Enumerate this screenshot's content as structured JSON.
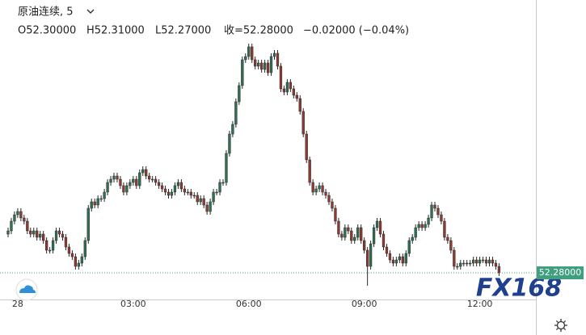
{
  "chart_data": {
    "type": "candlestick",
    "title": "原油连续, 5",
    "ohlc_texts": [
      "O52.30000",
      "H52.31000",
      "L52.27000",
      "收=52.28000",
      "−0.02000 (−0.04%)"
    ],
    "last_price_label": "52.28000",
    "logo": "FX168",
    "up_color": "#2f6f52",
    "down_color": "#8e3a30",
    "last_color": "#3f9f7f",
    "ylim": [
      52.195,
      53.125
    ],
    "categories": [
      null,
      null,
      null,
      "28",
      null,
      null,
      null,
      null,
      null,
      null,
      null,
      null,
      null,
      null,
      null,
      null,
      null,
      null,
      null,
      null,
      null,
      null,
      null,
      null,
      null,
      null,
      null,
      null,
      null,
      null,
      null,
      null,
      null,
      null,
      null,
      null,
      null,
      null,
      null,
      "03:00",
      null,
      null,
      null,
      null,
      null,
      null,
      null,
      null,
      null,
      null,
      null,
      null,
      null,
      null,
      null,
      null,
      null,
      null,
      null,
      null,
      null,
      null,
      null,
      null,
      null,
      null,
      null,
      null,
      null,
      null,
      null,
      null,
      null,
      null,
      null,
      "06:00",
      null,
      null,
      null,
      null,
      null,
      null,
      null,
      null,
      null,
      null,
      null,
      null,
      null,
      null,
      null,
      null,
      null,
      null,
      null,
      null,
      null,
      null,
      null,
      null,
      null,
      null,
      null,
      null,
      null,
      null,
      null,
      null,
      null,
      null,
      null,
      "09:00",
      null,
      null,
      null,
      null,
      null,
      null,
      null,
      null,
      null,
      null,
      null,
      null,
      null,
      null,
      null,
      null,
      null,
      null,
      null,
      null,
      null,
      null,
      null,
      null,
      null,
      null,
      null,
      null,
      null,
      null,
      null,
      null,
      null,
      null,
      null,
      "12:00",
      null,
      null,
      null,
      null,
      null,
      null
    ],
    "open": [
      52.4,
      52.41,
      52.44,
      52.46,
      52.47,
      52.45,
      52.44,
      52.41,
      52.4,
      52.41,
      52.39,
      52.4,
      52.38,
      52.35,
      52.35,
      52.38,
      52.41,
      52.4,
      52.39,
      52.36,
      52.34,
      52.33,
      52.3,
      52.31,
      52.33,
      52.38,
      52.48,
      52.5,
      52.49,
      52.51,
      52.51,
      52.53,
      52.56,
      52.57,
      52.58,
      52.57,
      52.55,
      52.53,
      52.55,
      52.56,
      52.57,
      52.55,
      52.59,
      52.6,
      52.58,
      52.57,
      52.57,
      52.56,
      52.55,
      52.54,
      52.53,
      52.52,
      52.53,
      52.55,
      52.56,
      52.54,
      52.53,
      52.53,
      52.52,
      52.52,
      52.5,
      52.51,
      52.49,
      52.47,
      52.5,
      52.53,
      52.53,
      52.56,
      52.56,
      52.65,
      52.71,
      52.74,
      52.81,
      52.86,
      52.94,
      52.95,
      52.98,
      52.94,
      52.92,
      52.93,
      52.91,
      52.93,
      52.9,
      52.95,
      52.96,
      52.92,
      52.85,
      52.84,
      52.87,
      52.85,
      52.83,
      52.82,
      52.78,
      52.71,
      52.63,
      52.56,
      52.53,
      52.54,
      52.55,
      52.53,
      52.52,
      52.5,
      52.48,
      52.44,
      52.4,
      52.39,
      52.42,
      52.41,
      52.38,
      52.39,
      52.42,
      52.38,
      52.35,
      52.3,
      52.37,
      52.42,
      52.44,
      52.4,
      52.36,
      52.34,
      52.32,
      52.31,
      52.32,
      52.33,
      52.31,
      52.34,
      52.38,
      52.39,
      52.42,
      52.43,
      52.42,
      52.43,
      52.45,
      52.49,
      52.48,
      52.46,
      52.44,
      52.39,
      52.38,
      52.35,
      52.3,
      52.3,
      52.31,
      52.31,
      52.31,
      52.31,
      52.32,
      52.31,
      52.32,
      52.32,
      52.31,
      52.32,
      52.31,
      52.3
    ],
    "high": [
      52.42,
      52.45,
      52.47,
      52.48,
      52.48,
      52.46,
      52.45,
      52.42,
      52.42,
      52.42,
      52.41,
      52.41,
      52.39,
      52.36,
      52.39,
      52.42,
      52.42,
      52.41,
      52.4,
      52.37,
      52.35,
      52.34,
      52.32,
      52.34,
      52.39,
      52.49,
      52.51,
      52.51,
      52.52,
      52.52,
      52.54,
      52.57,
      52.58,
      52.59,
      52.59,
      52.58,
      52.56,
      52.56,
      52.57,
      52.58,
      52.58,
      52.6,
      52.61,
      52.61,
      52.59,
      52.58,
      52.58,
      52.57,
      52.56,
      52.55,
      52.54,
      52.54,
      52.56,
      52.57,
      52.57,
      52.55,
      52.54,
      52.54,
      52.53,
      52.53,
      52.52,
      52.52,
      52.5,
      52.51,
      52.54,
      52.54,
      52.57,
      52.57,
      52.66,
      52.72,
      52.75,
      52.82,
      52.87,
      52.95,
      52.96,
      52.99,
      52.99,
      52.95,
      52.94,
      52.94,
      52.94,
      52.94,
      52.96,
      52.97,
      52.97,
      52.93,
      52.86,
      52.88,
      52.88,
      52.86,
      52.84,
      52.83,
      52.79,
      52.72,
      52.64,
      52.57,
      52.55,
      52.56,
      52.56,
      52.54,
      52.53,
      52.51,
      52.49,
      52.45,
      52.41,
      52.43,
      52.43,
      52.42,
      52.4,
      52.43,
      52.43,
      52.39,
      52.36,
      52.38,
      52.43,
      52.45,
      52.45,
      52.41,
      52.37,
      52.35,
      52.33,
      52.33,
      52.34,
      52.34,
      52.35,
      52.39,
      52.4,
      52.43,
      52.44,
      52.44,
      52.44,
      52.46,
      52.5,
      52.5,
      52.49,
      52.47,
      52.45,
      52.4,
      52.39,
      52.36,
      52.31,
      52.32,
      52.32,
      52.32,
      52.32,
      52.33,
      52.33,
      52.33,
      52.33,
      52.33,
      52.33,
      52.33,
      52.32,
      52.31
    ],
    "low": [
      52.39,
      52.4,
      52.43,
      52.45,
      52.44,
      52.43,
      52.4,
      52.39,
      52.39,
      52.38,
      52.38,
      52.37,
      52.34,
      52.34,
      52.34,
      52.37,
      52.39,
      52.38,
      52.35,
      52.33,
      52.32,
      52.29,
      52.29,
      52.3,
      52.32,
      52.37,
      52.47,
      52.48,
      52.48,
      52.5,
      52.5,
      52.52,
      52.55,
      52.56,
      52.56,
      52.54,
      52.52,
      52.52,
      52.54,
      52.55,
      52.54,
      52.54,
      52.58,
      52.57,
      52.56,
      52.56,
      52.55,
      52.54,
      52.53,
      52.52,
      52.51,
      52.51,
      52.52,
      52.54,
      52.53,
      52.52,
      52.52,
      52.51,
      52.51,
      52.49,
      52.49,
      52.48,
      52.46,
      52.46,
      52.49,
      52.52,
      52.52,
      52.55,
      52.55,
      52.64,
      52.7,
      52.73,
      52.8,
      52.85,
      52.93,
      52.94,
      52.93,
      52.91,
      52.91,
      52.9,
      52.9,
      52.89,
      52.89,
      52.94,
      52.91,
      52.84,
      52.83,
      52.83,
      52.84,
      52.82,
      52.81,
      52.77,
      52.7,
      52.62,
      52.55,
      52.52,
      52.52,
      52.53,
      52.52,
      52.51,
      52.49,
      52.47,
      52.43,
      52.39,
      52.38,
      52.38,
      52.4,
      52.37,
      52.37,
      52.38,
      52.37,
      52.34,
      52.24,
      52.29,
      52.36,
      52.41,
      52.39,
      52.35,
      52.33,
      52.31,
      52.3,
      52.3,
      52.31,
      52.3,
      52.3,
      52.33,
      52.37,
      52.38,
      52.41,
      52.41,
      52.41,
      52.42,
      52.44,
      52.47,
      52.45,
      52.43,
      52.38,
      52.37,
      52.34,
      52.29,
      52.29,
      52.29,
      52.3,
      52.3,
      52.3,
      52.3,
      52.3,
      52.3,
      52.31,
      52.3,
      52.3,
      52.3,
      52.29,
      52.27
    ],
    "close": [
      52.41,
      52.44,
      52.46,
      52.47,
      52.45,
      52.44,
      52.41,
      52.4,
      52.41,
      52.39,
      52.4,
      52.38,
      52.35,
      52.35,
      52.38,
      52.41,
      52.4,
      52.39,
      52.36,
      52.34,
      52.33,
      52.3,
      52.31,
      52.33,
      52.38,
      52.48,
      52.5,
      52.49,
      52.51,
      52.51,
      52.53,
      52.56,
      52.57,
      52.58,
      52.57,
      52.55,
      52.53,
      52.55,
      52.56,
      52.57,
      52.55,
      52.59,
      52.6,
      52.58,
      52.57,
      52.57,
      52.56,
      52.55,
      52.54,
      52.53,
      52.52,
      52.53,
      52.55,
      52.56,
      52.54,
      52.53,
      52.53,
      52.52,
      52.52,
      52.5,
      52.51,
      52.49,
      52.47,
      52.5,
      52.53,
      52.53,
      52.56,
      52.56,
      52.65,
      52.71,
      52.74,
      52.81,
      52.86,
      52.94,
      52.95,
      52.98,
      52.94,
      52.92,
      52.93,
      52.91,
      52.93,
      52.9,
      52.95,
      52.96,
      52.92,
      52.85,
      52.84,
      52.87,
      52.85,
      52.83,
      52.82,
      52.78,
      52.71,
      52.63,
      52.56,
      52.53,
      52.54,
      52.55,
      52.53,
      52.52,
      52.5,
      52.48,
      52.44,
      52.4,
      52.39,
      52.42,
      52.41,
      52.38,
      52.39,
      52.42,
      52.38,
      52.35,
      52.3,
      52.37,
      52.42,
      52.44,
      52.4,
      52.36,
      52.34,
      52.32,
      52.31,
      52.32,
      52.33,
      52.31,
      52.34,
      52.38,
      52.39,
      52.42,
      52.43,
      52.42,
      52.43,
      52.45,
      52.49,
      52.48,
      52.46,
      52.44,
      52.39,
      52.38,
      52.35,
      52.3,
      52.3,
      52.31,
      52.31,
      52.31,
      52.31,
      52.32,
      52.31,
      52.32,
      52.32,
      52.31,
      52.32,
      52.31,
      52.3,
      52.28
    ]
  }
}
